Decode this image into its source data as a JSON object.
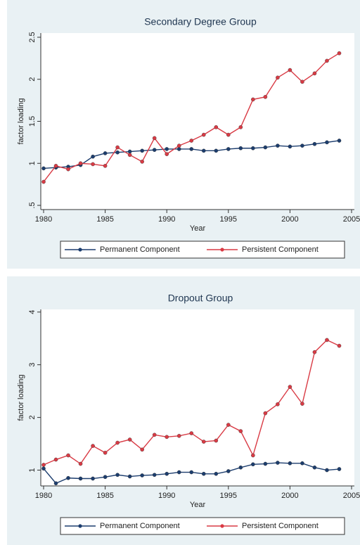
{
  "chart_data": [
    {
      "type": "line",
      "title": "Secondary Degree Group",
      "xlabel": "Year",
      "ylabel": "factor loading",
      "x": [
        1980,
        1981,
        1982,
        1983,
        1984,
        1985,
        1986,
        1987,
        1988,
        1989,
        1990,
        1991,
        1992,
        1993,
        1994,
        1995,
        1996,
        1997,
        1998,
        1999,
        2000,
        2001,
        2002,
        2003,
        2004
      ],
      "xlim": [
        1980,
        2005
      ],
      "xticks": [
        1980,
        1985,
        1990,
        1995,
        2000,
        2005
      ],
      "ylim": [
        0.45,
        2.55
      ],
      "yticks": [
        {
          "value": 0.5,
          "label": ".5"
        },
        1,
        1.5,
        2,
        2.5
      ],
      "legend": "bottom",
      "series": [
        {
          "name": "Permanent Component",
          "color": "#1c3d6e",
          "values": [
            0.94,
            0.95,
            0.96,
            0.98,
            1.08,
            1.12,
            1.13,
            1.14,
            1.15,
            1.16,
            1.17,
            1.17,
            1.17,
            1.15,
            1.15,
            1.17,
            1.18,
            1.18,
            1.19,
            1.21,
            1.2,
            1.21,
            1.23,
            1.25,
            1.27
          ]
        },
        {
          "name": "Persistent Component",
          "color": "#d93a44",
          "values": [
            0.78,
            0.97,
            0.93,
            1.0,
            0.99,
            0.97,
            1.19,
            1.1,
            1.02,
            1.3,
            1.11,
            1.21,
            1.27,
            1.34,
            1.43,
            1.34,
            1.43,
            1.76,
            1.79,
            2.02,
            2.11,
            1.97,
            2.07,
            2.22,
            2.31
          ]
        }
      ]
    },
    {
      "type": "line",
      "title": "Dropout Group",
      "xlabel": "Year",
      "ylabel": "factor loading",
      "x": [
        1980,
        1981,
        1982,
        1983,
        1984,
        1985,
        1986,
        1987,
        1988,
        1989,
        1990,
        1991,
        1992,
        1993,
        1994,
        1995,
        1996,
        1997,
        1998,
        1999,
        2000,
        2001,
        2002,
        2003,
        2004
      ],
      "xlim": [
        1980,
        2005
      ],
      "xticks": [
        1980,
        1985,
        1990,
        1995,
        2000,
        2005
      ],
      "ylim": [
        0.7,
        4.05
      ],
      "yticks": [
        1,
        2,
        3,
        4
      ],
      "legend": "bottom",
      "series": [
        {
          "name": "Permanent Component",
          "color": "#1c3d6e",
          "values": [
            1.03,
            0.75,
            0.85,
            0.84,
            0.84,
            0.87,
            0.91,
            0.88,
            0.9,
            0.91,
            0.93,
            0.96,
            0.96,
            0.93,
            0.93,
            0.98,
            1.05,
            1.11,
            1.12,
            1.14,
            1.13,
            1.13,
            1.05,
            1.0,
            1.02
          ]
        },
        {
          "name": "Persistent Component",
          "color": "#d93a44",
          "values": [
            1.1,
            1.2,
            1.28,
            1.12,
            1.46,
            1.33,
            1.52,
            1.58,
            1.39,
            1.67,
            1.63,
            1.65,
            1.7,
            1.54,
            1.56,
            1.86,
            1.74,
            1.28,
            2.08,
            2.25,
            2.58,
            2.26,
            3.24,
            3.47,
            3.36
          ]
        }
      ]
    }
  ]
}
